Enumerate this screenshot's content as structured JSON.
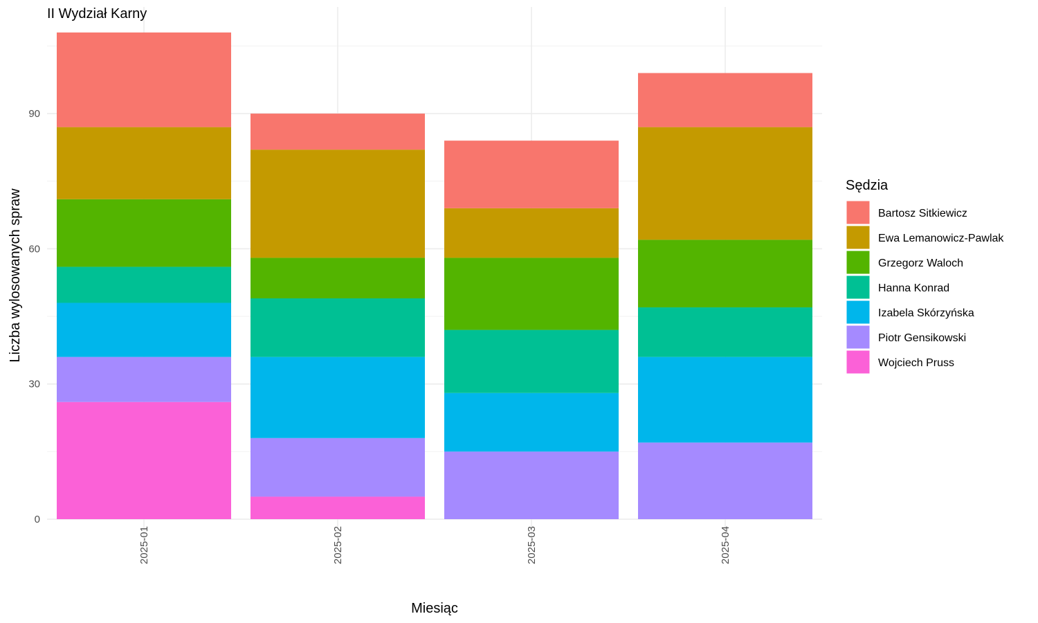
{
  "chart_data": {
    "type": "bar",
    "stacked": true,
    "title": "II Wydział Karny",
    "xlabel": "Miesiąc",
    "ylabel": "Liczba wylosowanych spraw",
    "categories": [
      "2025-01",
      "2025-02",
      "2025-03",
      "2025-04"
    ],
    "ylim": [
      0,
      110
    ],
    "yticks": [
      0,
      30,
      60,
      90
    ],
    "grid": true,
    "legend": {
      "title": "Sędzia",
      "position": "right"
    },
    "series": [
      {
        "name": "Bartosz Sitkiewicz",
        "color": "#F8766D",
        "values": [
          21,
          8,
          15,
          12
        ]
      },
      {
        "name": "Ewa Lemanowicz-Pawlak",
        "color": "#C49A00",
        "values": [
          16,
          24,
          11,
          25
        ]
      },
      {
        "name": "Grzegorz Waloch",
        "color": "#53B400",
        "values": [
          15,
          9,
          16,
          15
        ]
      },
      {
        "name": "Hanna Konrad",
        "color": "#00C094",
        "values": [
          8,
          13,
          14,
          11
        ]
      },
      {
        "name": "Izabela Skórzyńska",
        "color": "#00B6EB",
        "values": [
          12,
          18,
          13,
          19
        ]
      },
      {
        "name": "Piotr Gensikowski",
        "color": "#A58AFF",
        "values": [
          10,
          13,
          15,
          17
        ]
      },
      {
        "name": "Wojciech Pruss",
        "color": "#FB61D7",
        "values": [
          26,
          5,
          0,
          0
        ]
      }
    ]
  }
}
